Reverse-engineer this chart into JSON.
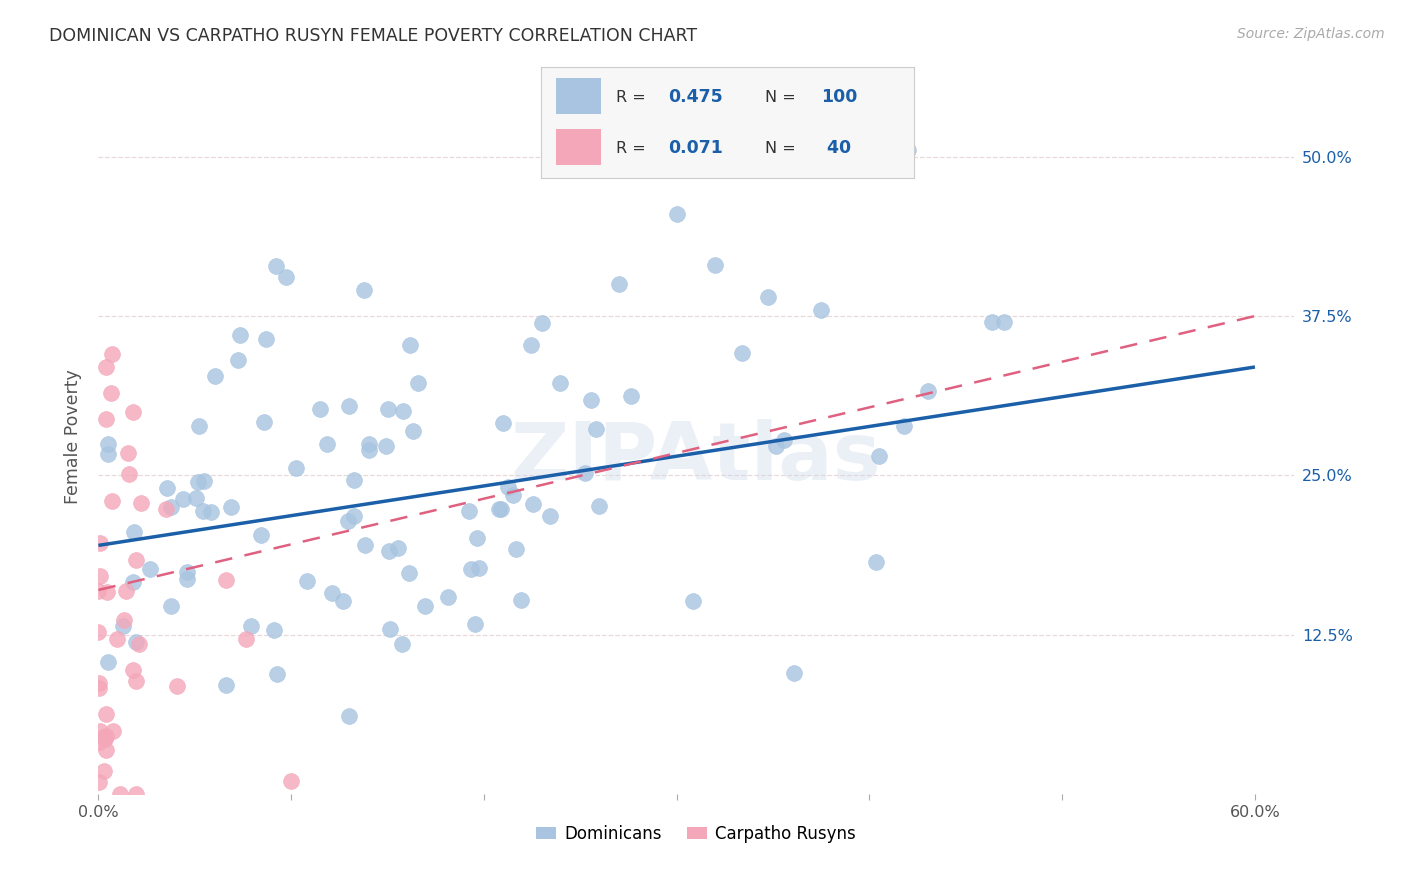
{
  "title": "DOMINICAN VS CARPATHO RUSYN FEMALE POVERTY CORRELATION CHART",
  "source": "Source: ZipAtlas.com",
  "ylabel": "Female Poverty",
  "xlim": [
    0.0,
    0.62
  ],
  "ylim": [
    0.0,
    0.56
  ],
  "xtick_vals": [
    0.0,
    0.1,
    0.2,
    0.3,
    0.4,
    0.5,
    0.6
  ],
  "xtick_labels_show": {
    "0.0": "0.0%",
    "0.6": "60.0%"
  },
  "ytick_labels": [
    "12.5%",
    "25.0%",
    "37.5%",
    "50.0%"
  ],
  "ytick_vals": [
    0.125,
    0.25,
    0.375,
    0.5
  ],
  "dominican_color": "#a8c4e0",
  "carpatho_color": "#f4a7b9",
  "line_dominican_color": "#1a5fa8",
  "line_carpatho_color": "#e06080",
  "R_dominican": 0.475,
  "N_dominican": 100,
  "R_carpatho": 0.071,
  "N_carpatho": 40,
  "background_color": "#ffffff",
  "grid_color": "#e8d8d8",
  "watermark": "ZIPAtlas",
  "dom_line_x0": 0.0,
  "dom_line_y0": 0.195,
  "dom_line_x1": 0.6,
  "dom_line_y1": 0.335,
  "carp_line_x0": 0.0,
  "carp_line_y0": 0.16,
  "carp_line_x1": 0.6,
  "carp_line_y1": 0.375
}
